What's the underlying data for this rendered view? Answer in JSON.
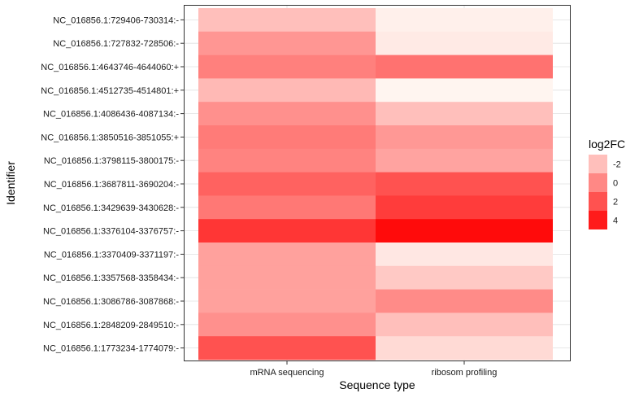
{
  "chart_data": {
    "type": "heatmap",
    "xlabel": "Sequence type",
    "ylabel": "Identifier",
    "x_categories": [
      "mRNA sequencing",
      "ribosom profiling"
    ],
    "y_categories": [
      "NC_016856.1:729406-730314:-",
      "NC_016856.1:727832-728506:-",
      "NC_016856.1:4643746-4644060:+",
      "NC_016856.1:4512735-4514801:+",
      "NC_016856.1:4086436-4087134:-",
      "NC_016856.1:3850516-3851055:+",
      "NC_016856.1:3798115-3800175:-",
      "NC_016856.1:3687811-3690204:-",
      "NC_016856.1:3429639-3430628:-",
      "NC_016856.1:3376104-3376757:-",
      "NC_016856.1:3370409-3371197:-",
      "NC_016856.1:3357568-3358434:-",
      "NC_016856.1:3086786-3087868:-",
      "NC_016856.1:2848209-2849510:-",
      "NC_016856.1:1773234-1774079:-"
    ],
    "values": [
      [
        -2.0,
        -3.8
      ],
      [
        -0.5,
        -3.6
      ],
      [
        0.3,
        0.8
      ],
      [
        -1.8,
        -4.0
      ],
      [
        -0.3,
        -2.0
      ],
      [
        0.5,
        -0.6
      ],
      [
        0.2,
        -1.0
      ],
      [
        1.4,
        2.0
      ],
      [
        0.6,
        2.8
      ],
      [
        3.0,
        4.6
      ],
      [
        -0.9,
        -3.5
      ],
      [
        -0.9,
        -2.4
      ],
      [
        -0.9,
        -0.1
      ],
      [
        -0.3,
        -2.0
      ],
      [
        2.0,
        -3.0
      ]
    ],
    "legend": {
      "title": "log2FC",
      "labels": [
        "-2",
        "0",
        "2",
        "4"
      ],
      "values": [
        -2,
        0,
        2,
        4
      ],
      "placement": "right"
    },
    "color_scale": {
      "low": "#fff5f0",
      "high": "#ff0000",
      "domain": [
        -4,
        5
      ]
    },
    "grid": true
  }
}
